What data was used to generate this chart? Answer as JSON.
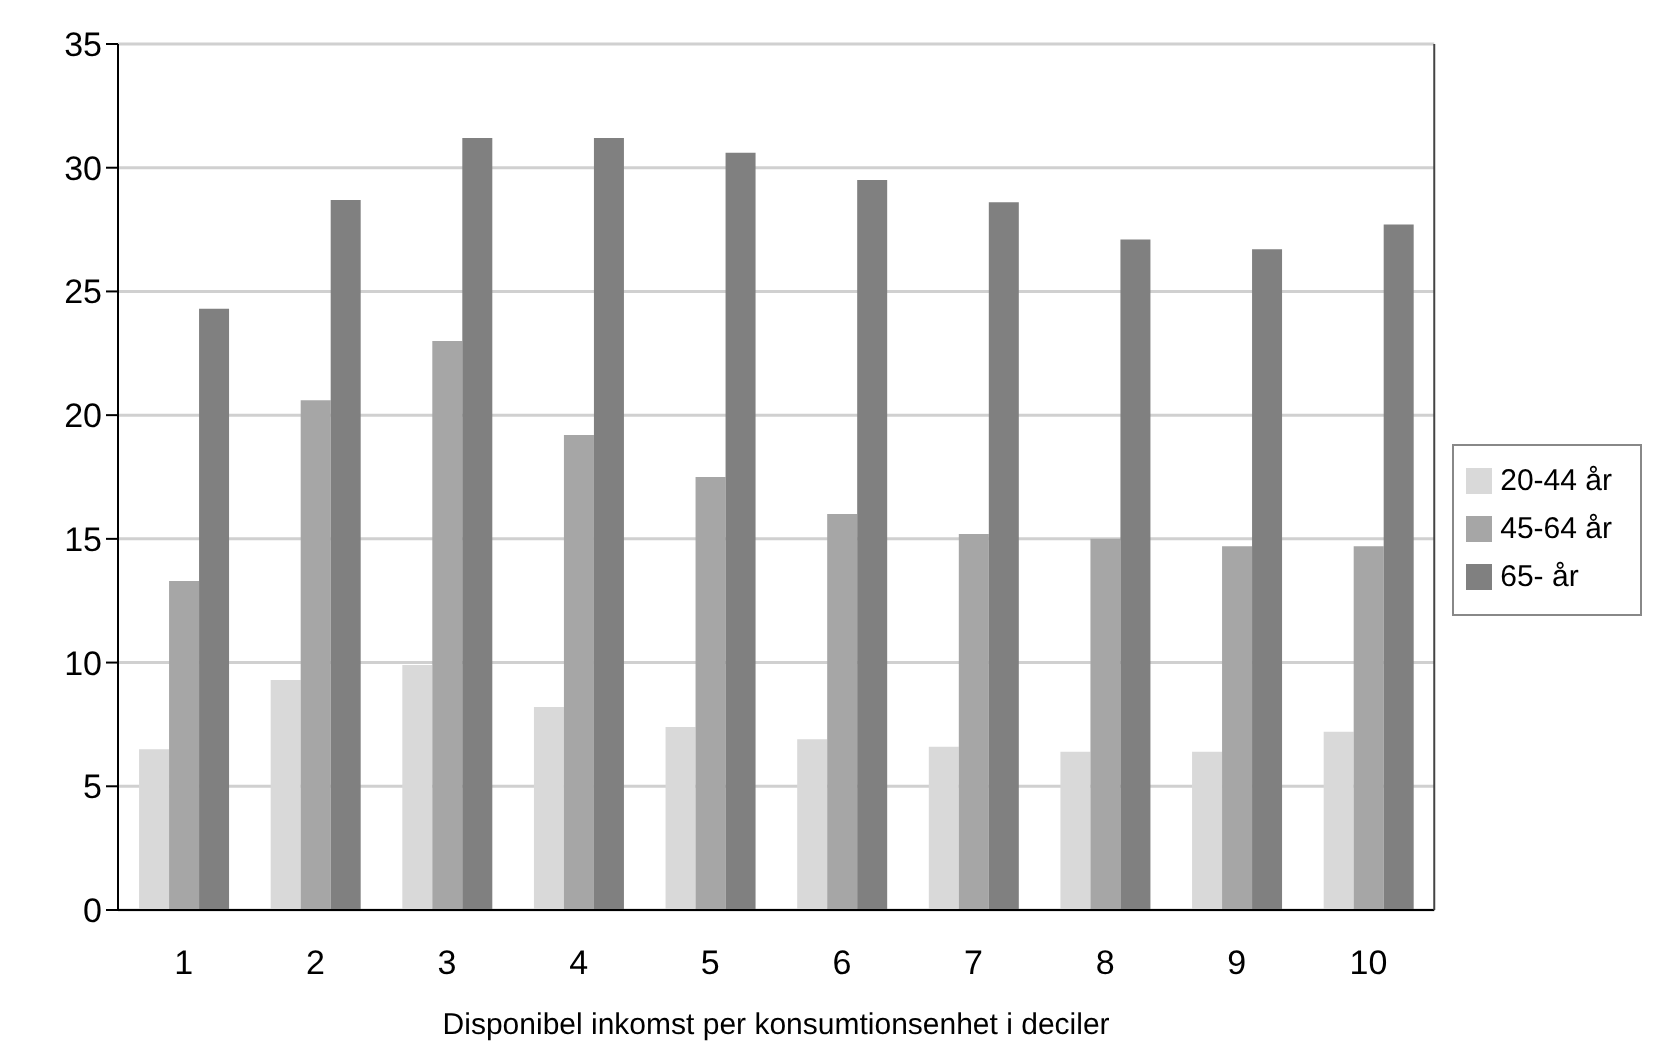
{
  "chart_data": {
    "type": "bar",
    "xlabel": "Disponibel inkomst per konsumtionsenhet i deciler",
    "categories": [
      "1",
      "2",
      "3",
      "4",
      "5",
      "6",
      "7",
      "8",
      "9",
      "10"
    ],
    "series": [
      {
        "name": "20-44 år",
        "color": "#d9d9d9",
        "values": [
          6.5,
          9.3,
          9.9,
          8.2,
          7.4,
          6.9,
          6.6,
          6.4,
          6.4,
          7.2
        ]
      },
      {
        "name": "45-64 år",
        "color": "#a6a6a6",
        "values": [
          13.3,
          20.6,
          23.0,
          19.2,
          17.5,
          16.0,
          15.2,
          15.0,
          14.7,
          14.7
        ]
      },
      {
        "name": "65- år",
        "color": "#808080",
        "values": [
          24.3,
          28.7,
          31.2,
          31.2,
          30.6,
          29.5,
          28.6,
          27.1,
          26.7,
          27.7
        ]
      }
    ],
    "ylim": [
      0,
      35
    ],
    "yticks": [
      0,
      5,
      10,
      15,
      20,
      25,
      30,
      35
    ],
    "grid": "y",
    "legend": "right"
  }
}
